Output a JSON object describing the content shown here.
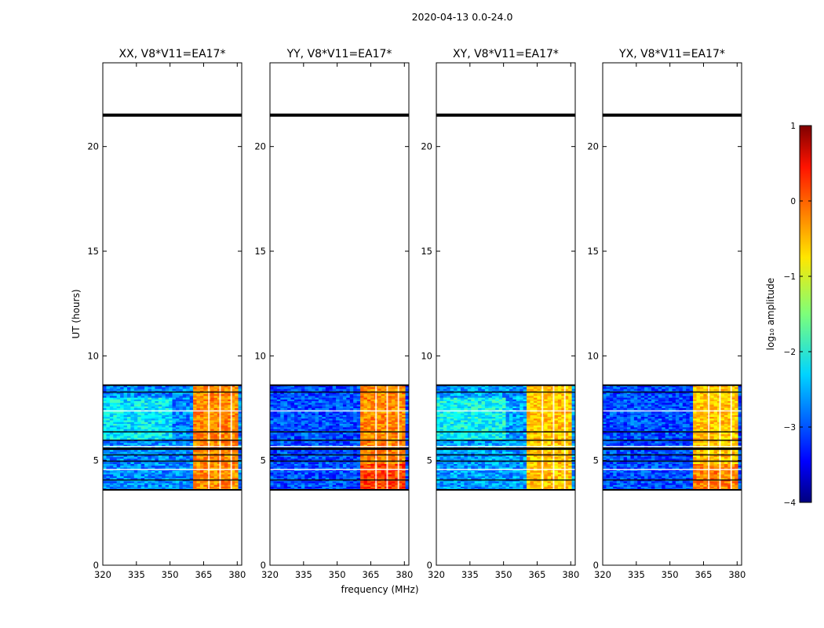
{
  "chart_data": {
    "type": "heatmap",
    "suptitle": "2020-04-13 0.0-24.0",
    "xlabel": "frequency (MHz)",
    "ylabel": "UT (hours)",
    "xlim": [
      320,
      382
    ],
    "ylim": [
      0,
      24
    ],
    "x_ticks": [
      320,
      335,
      350,
      365,
      380
    ],
    "y_ticks": [
      0,
      5,
      10,
      15,
      20
    ],
    "data_time_range_hours": [
      3.6,
      8.6
    ],
    "bright_band_mhz": [
      360,
      380
    ],
    "flag_line_hours": [
      21.5
    ],
    "panels": [
      {
        "title": "XX, V8*V11=EA17*",
        "background_level": -2.7,
        "band_level": -0.3
      },
      {
        "title": "YY, V8*V11=EA17*",
        "background_level": -3.0,
        "band_level": -0.3
      },
      {
        "title": "XY, V8*V11=EA17*",
        "background_level": -2.6,
        "band_level": -0.6
      },
      {
        "title": "YX, V8*V11=EA17*",
        "background_level": -3.0,
        "band_level": -0.6
      }
    ],
    "colorbar": {
      "label": "log₁₀ amplitude",
      "range": [
        -4,
        1
      ],
      "ticks": [
        1,
        0,
        -1,
        -2,
        -3,
        -4
      ],
      "tick_labels": [
        "1",
        "0",
        "−1",
        "−2",
        "−3",
        "−4"
      ],
      "colormap": "jet"
    }
  }
}
